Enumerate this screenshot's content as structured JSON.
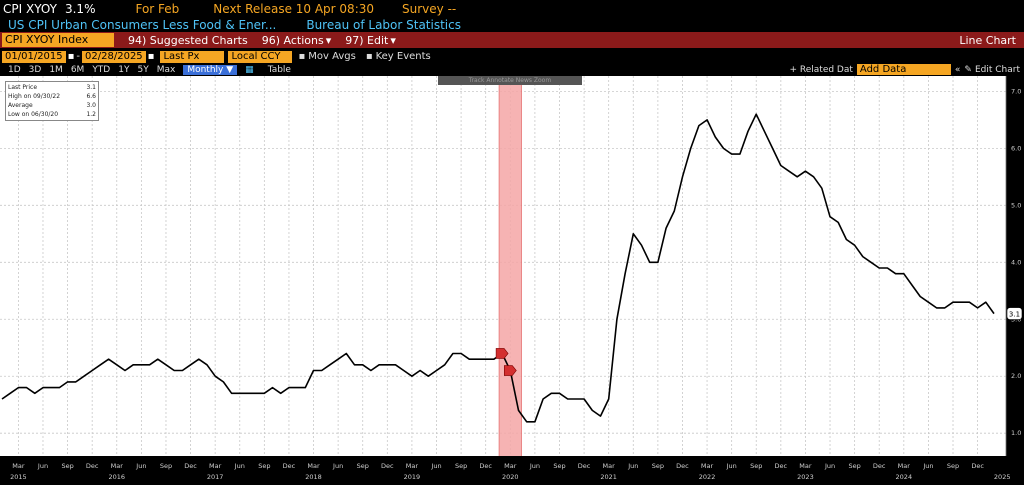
{
  "header": {
    "ticker": "CPI XYOY",
    "value": "3.1%",
    "for_label": "For Feb",
    "next_release": "Next Release 10 Apr 08:30",
    "survey": "Survey --",
    "description": "US CPI Urban Consumers Less Food & Ener...",
    "source": "Bureau of Labor Statistics"
  },
  "menu": {
    "index_label": "CPI XYOY Index",
    "suggested": "94) Suggested Charts",
    "actions": "96) Actions",
    "edit": "97) Edit",
    "chart_type": "Line Chart"
  },
  "controls": {
    "start_date": "01/01/2015",
    "end_date": "02/28/2025",
    "field": "Last Px",
    "currency": "Local CCY",
    "mov_avgs": "Mov Avgs",
    "key_events": "Key Events",
    "periods": [
      "1D",
      "3D",
      "1M",
      "6M",
      "YTD",
      "1Y",
      "5Y",
      "Max"
    ],
    "frequency": "Monthly",
    "table": "Table",
    "related": "+ Related Dat",
    "add_data_placeholder": "Add Data",
    "edit_chart": "Edit Chart"
  },
  "legend": {
    "rows": [
      {
        "label": "Last Price",
        "value": "3.1"
      },
      {
        "label": "High on 09/30/22",
        "value": "6.6"
      },
      {
        "label": "Average",
        "value": "3.0"
      },
      {
        "label": "Low on 06/30/20",
        "value": "1.2"
      }
    ]
  },
  "toolbox": "Track  Annotate  News  Zoom",
  "colors": {
    "line": "#000000",
    "recession_band": "#f4a6a6",
    "header_bar": "#8b1a1a",
    "accent": "#f5a623"
  },
  "chart_data": {
    "type": "line",
    "title": "",
    "xlabel": "",
    "ylabel": "",
    "ylim": [
      0.6,
      7.2
    ],
    "yticks": [
      "1.0",
      "2.0",
      "3.0",
      "4.0",
      "5.0",
      "6.0",
      "7.0"
    ],
    "last_value_label": "3.1",
    "x_start": "2015-01",
    "x_end": "2025-02",
    "year_labels": [
      "2015",
      "2016",
      "2017",
      "2018",
      "2019",
      "2020",
      "2021",
      "2022",
      "2023",
      "2024",
      "2025"
    ],
    "month_labels": [
      "Mar",
      "Jun",
      "Sep",
      "Dec"
    ],
    "highlight_band": {
      "start": "2020-02",
      "end": "2020-04"
    },
    "event_markers": [
      {
        "date": "2020-02",
        "value": 2.4
      },
      {
        "date": "2020-03",
        "value": 2.1
      }
    ],
    "series": [
      {
        "values": [
          1.6,
          1.7,
          1.8,
          1.8,
          1.7,
          1.8,
          1.8,
          1.8,
          1.9,
          1.9,
          2.0,
          2.1,
          2.2,
          2.3,
          2.2,
          2.1,
          2.2,
          2.2,
          2.2,
          2.3,
          2.2,
          2.1,
          2.1,
          2.2,
          2.3,
          2.2,
          2.0,
          1.9,
          1.7,
          1.7,
          1.7,
          1.7,
          1.7,
          1.8,
          1.7,
          1.8,
          1.8,
          1.8,
          2.1,
          2.1,
          2.2,
          2.3,
          2.4,
          2.2,
          2.2,
          2.1,
          2.2,
          2.2,
          2.2,
          2.1,
          2.0,
          2.1,
          2.0,
          2.1,
          2.2,
          2.4,
          2.4,
          2.3,
          2.3,
          2.3,
          2.3,
          2.4,
          2.1,
          1.4,
          1.2,
          1.2,
          1.6,
          1.7,
          1.7,
          1.6,
          1.6,
          1.6,
          1.4,
          1.3,
          1.6,
          3.0,
          3.8,
          4.5,
          4.3,
          4.0,
          4.0,
          4.6,
          4.9,
          5.5,
          6.0,
          6.4,
          6.5,
          6.2,
          6.0,
          5.9,
          5.9,
          6.3,
          6.6,
          6.3,
          6.0,
          5.7,
          5.6,
          5.5,
          5.6,
          5.5,
          5.3,
          4.8,
          4.7,
          4.4,
          4.3,
          4.1,
          4.0,
          3.9,
          3.9,
          3.8,
          3.8,
          3.6,
          3.4,
          3.3,
          3.2,
          3.2,
          3.3,
          3.3,
          3.3,
          3.2,
          3.3,
          3.1
        ]
      }
    ]
  }
}
